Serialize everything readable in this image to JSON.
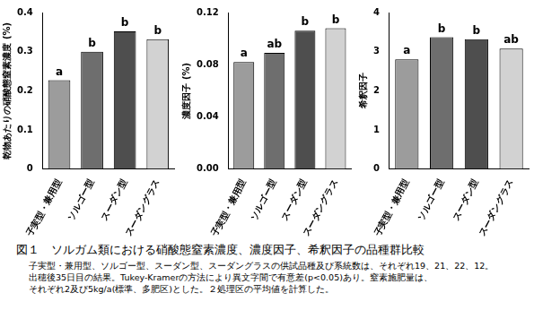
{
  "chart_data": [
    {
      "type": "bar",
      "y_label": "乾物あたりの硝酸態窒素濃度 (%)",
      "categories": [
        "子実型・兼用型",
        "ソルゴー型",
        "スーダン型",
        "スーダングラス"
      ],
      "values": [
        0.227,
        0.3,
        0.352,
        0.332
      ],
      "letters": [
        "a",
        "b",
        "b",
        "b"
      ],
      "colors": [
        "#9c9c9c",
        "#6e6e6e",
        "#4e4e4e",
        "#d2d2d2"
      ],
      "ylim": [
        0,
        0.4
      ],
      "yticks": [
        0,
        0.1,
        0.2,
        0.3,
        0.4
      ],
      "grid": false
    },
    {
      "type": "bar",
      "y_label": "濃度因子 (%)",
      "categories": [
        "子実型・兼用型",
        "ソルゴー型",
        "スーダン型",
        "スーダングラス"
      ],
      "values": [
        0.082,
        0.089,
        0.106,
        0.108
      ],
      "letters": [
        "a",
        "ab",
        "b",
        "b"
      ],
      "colors": [
        "#9c9c9c",
        "#6e6e6e",
        "#4e4e4e",
        "#d2d2d2"
      ],
      "ylim": [
        0,
        0.12
      ],
      "yticks": [
        {
          "value": 0,
          "label": "0.00"
        },
        {
          "value": 0.04,
          "label": "0.04"
        },
        {
          "value": 0.08,
          "label": "0.08"
        },
        {
          "value": 0.12,
          "label": "0.12"
        }
      ],
      "grid": false
    },
    {
      "type": "bar",
      "y_label": "希釈因子",
      "categories": [
        "子実型・兼用型",
        "ソルゴー型",
        "スーダン型",
        "スーダングラス"
      ],
      "values": [
        2.8,
        3.37,
        3.32,
        3.08
      ],
      "letters": [
        "a",
        "b",
        "b",
        "ab"
      ],
      "colors": [
        "#9c9c9c",
        "#6e6e6e",
        "#4e4e4e",
        "#d2d2d2"
      ],
      "ylim": [
        0,
        4
      ],
      "yticks": [
        0,
        1,
        2,
        3,
        4
      ],
      "grid": false
    }
  ],
  "caption": {
    "title": "図１　ソルガム類における硝酸態窒素濃度、濃度因子、希釈因子の品種群比較",
    "notes": [
      "子実型・兼用型、ソルゴー型、スーダン型、スーダングラスの供試品種及び系統数は、それぞれ19、21、22、12。",
      "出穂後35日目の結果。Tukey-Kramerの方法により異文字間で有意差(p<0.05)あり。窒素施肥量は、",
      "それぞれ2及び5kg/a(標準、多肥区)とした。２処理区の平均値を計算した。"
    ]
  }
}
